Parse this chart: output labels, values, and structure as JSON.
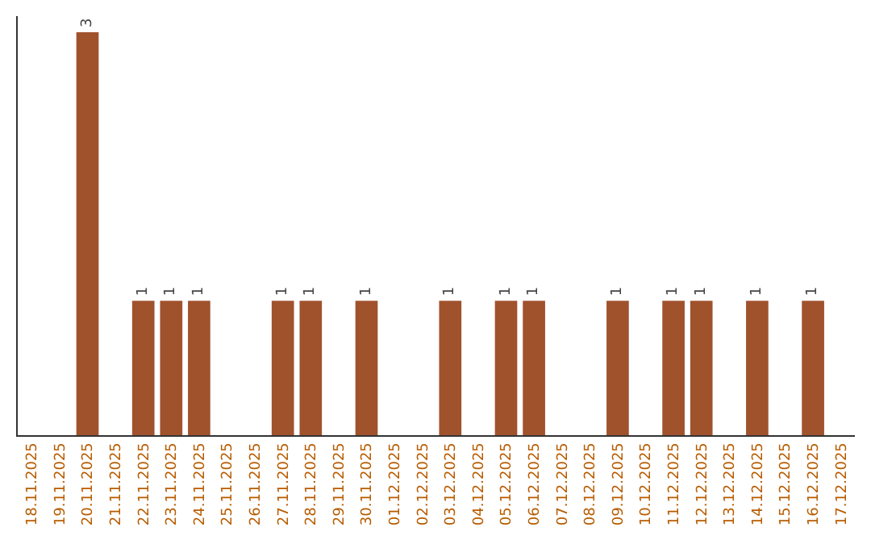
{
  "chart_data": {
    "type": "bar",
    "categories": [
      "18.11.2025",
      "19.11.2025",
      "20.11.2025",
      "21.11.2025",
      "22.11.2025",
      "23.11.2025",
      "24.11.2025",
      "25.11.2025",
      "26.11.2025",
      "27.11.2025",
      "28.11.2025",
      "29.11.2025",
      "30.11.2025",
      "01.12.2025",
      "02.12.2025",
      "03.12.2025",
      "04.12.2025",
      "05.12.2025",
      "06.12.2025",
      "07.12.2025",
      "08.12.2025",
      "09.12.2025",
      "10.12.2025",
      "11.12.2025",
      "12.12.2025",
      "13.12.2025",
      "14.12.2025",
      "15.12.2025",
      "16.12.2025",
      "17.12.2025"
    ],
    "values": [
      0,
      0,
      3,
      0,
      1,
      1,
      1,
      0,
      0,
      1,
      1,
      0,
      1,
      0,
      0,
      1,
      0,
      1,
      1,
      0,
      0,
      1,
      0,
      1,
      1,
      0,
      1,
      0,
      1,
      0
    ],
    "value_labels": [
      null,
      null,
      "3",
      null,
      "1",
      "1",
      "1",
      null,
      null,
      "1",
      "1",
      null,
      "1",
      null,
      null,
      "1",
      null,
      "1",
      "1",
      null,
      null,
      "1",
      null,
      "1",
      "1",
      null,
      "1",
      null,
      "1",
      null
    ],
    "color": "#a0522d",
    "ylim": [
      0,
      3.12
    ],
    "tick_labels": "x",
    "legend": false
  }
}
